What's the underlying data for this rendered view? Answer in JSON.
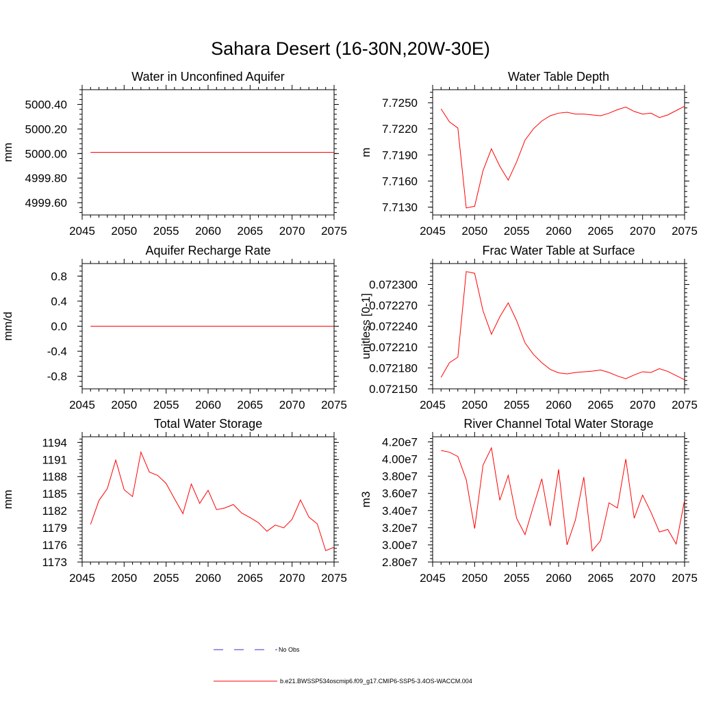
{
  "title": "Sahara Desert (16-30N,20W-30E)",
  "legend": {
    "entries": [
      {
        "label": "No Obs",
        "color": "#3333cc",
        "style": "dashed"
      },
      {
        "label": "b.e21.BWSSP534oscmip6.f09_g17.CMIP6-SSP5-3.4OS-WACCM.004",
        "color": "#ff0000",
        "style": "solid"
      }
    ]
  },
  "chart_data": [
    {
      "type": "line",
      "title": "Water in Unconfined Aquifer",
      "ylabel": "mm",
      "xlim": [
        2045,
        2075
      ],
      "ylim": [
        4999.5,
        5000.52
      ],
      "xticks": [
        2045,
        2050,
        2055,
        2060,
        2065,
        2070,
        2075
      ],
      "xtick_labels": [
        "2045",
        "2050",
        "2055",
        "2060",
        "2065",
        "2070",
        "2075"
      ],
      "yticks": [
        4999.6,
        4999.8,
        5000.0,
        5000.2,
        5000.4
      ],
      "ytick_labels": [
        "4999.60",
        "4999.80",
        "5000.00",
        "5000.20",
        "5000.40"
      ],
      "series": [
        {
          "color": "#ff0000",
          "x": [
            2046,
            2047,
            2048,
            2049,
            2050,
            2051,
            2052,
            2053,
            2054,
            2055,
            2056,
            2057,
            2058,
            2059,
            2060,
            2061,
            2062,
            2063,
            2064,
            2065,
            2066,
            2067,
            2068,
            2069,
            2070,
            2071,
            2072,
            2073,
            2074,
            2075
          ],
          "values": [
            5000.01,
            5000.01,
            5000.01,
            5000.01,
            5000.01,
            5000.01,
            5000.01,
            5000.01,
            5000.01,
            5000.01,
            5000.01,
            5000.01,
            5000.01,
            5000.01,
            5000.01,
            5000.01,
            5000.01,
            5000.01,
            5000.01,
            5000.01,
            5000.01,
            5000.01,
            5000.01,
            5000.01,
            5000.01,
            5000.01,
            5000.01,
            5000.01,
            5000.01,
            5000.01
          ]
        }
      ]
    },
    {
      "type": "line",
      "title": "Water Table Depth",
      "ylabel": "m",
      "xlim": [
        2045,
        2075
      ],
      "ylim": [
        7.7121,
        7.7265
      ],
      "xticks": [
        2045,
        2050,
        2055,
        2060,
        2065,
        2070,
        2075
      ],
      "xtick_labels": [
        "2045",
        "2050",
        "2055",
        "2060",
        "2065",
        "2070",
        "2075"
      ],
      "yticks": [
        7.713,
        7.716,
        7.719,
        7.722,
        7.725
      ],
      "ytick_labels": [
        "7.7130",
        "7.7160",
        "7.7190",
        "7.7220",
        "7.7250"
      ],
      "series": [
        {
          "color": "#ff0000",
          "x": [
            2046,
            2047,
            2048,
            2049,
            2050,
            2051,
            2052,
            2053,
            2054,
            2055,
            2056,
            2057,
            2058,
            2059,
            2060,
            2061,
            2062,
            2063,
            2064,
            2065,
            2066,
            2067,
            2068,
            2069,
            2070,
            2071,
            2072,
            2073,
            2074,
            2075
          ],
          "values": [
            7.7243,
            7.7228,
            7.7221,
            7.7129,
            7.7131,
            7.7172,
            7.7197,
            7.7177,
            7.7161,
            7.7182,
            7.7207,
            7.722,
            7.7229,
            7.7235,
            7.7238,
            7.7239,
            7.7237,
            7.7237,
            7.7236,
            7.7235,
            7.7238,
            7.7242,
            7.7245,
            7.724,
            7.7237,
            7.7238,
            7.7233,
            7.7236,
            7.7241,
            7.7246
          ]
        }
      ]
    },
    {
      "type": "line",
      "title": "Aquifer Recharge Rate",
      "ylabel": "mm/d",
      "xlim": [
        2045,
        2075
      ],
      "ylim": [
        -1.0,
        1.0
      ],
      "xticks": [
        2045,
        2050,
        2055,
        2060,
        2065,
        2070,
        2075
      ],
      "xtick_labels": [
        "2045",
        "2050",
        "2055",
        "2060",
        "2065",
        "2070",
        "2075"
      ],
      "yticks": [
        -0.8,
        -0.4,
        0.0,
        0.4,
        0.8
      ],
      "ytick_labels": [
        "-0.8",
        "-0.4",
        "0.0",
        "0.4",
        "0.8"
      ],
      "series": [
        {
          "color": "#ff0000",
          "x": [
            2046,
            2047,
            2048,
            2049,
            2050,
            2051,
            2052,
            2053,
            2054,
            2055,
            2056,
            2057,
            2058,
            2059,
            2060,
            2061,
            2062,
            2063,
            2064,
            2065,
            2066,
            2067,
            2068,
            2069,
            2070,
            2071,
            2072,
            2073,
            2074,
            2075
          ],
          "values": [
            0,
            0,
            0,
            0,
            0,
            0,
            0,
            0,
            0,
            0,
            0,
            0,
            0,
            0,
            0,
            0,
            0,
            0,
            0,
            0,
            0,
            0,
            0,
            0,
            0,
            0,
            0,
            0,
            0,
            0
          ]
        }
      ]
    },
    {
      "type": "line",
      "title": "Frac Water Table at Surface",
      "ylabel": "unitless [0-1]",
      "xlim": [
        2045,
        2075
      ],
      "ylim": [
        0.07215,
        0.07233
      ],
      "xticks": [
        2045,
        2050,
        2055,
        2060,
        2065,
        2070,
        2075
      ],
      "xtick_labels": [
        "2045",
        "2050",
        "2055",
        "2060",
        "2065",
        "2070",
        "2075"
      ],
      "yticks": [
        0.07215,
        0.07218,
        0.07221,
        0.07224,
        0.07227,
        0.0723
      ],
      "ytick_labels": [
        "0.072150",
        "0.072180",
        "0.072210",
        "0.072240",
        "0.072270",
        "0.072300"
      ],
      "series": [
        {
          "color": "#ff0000",
          "x": [
            2046,
            2047,
            2048,
            2049,
            2050,
            2051,
            2052,
            2053,
            2054,
            2055,
            2056,
            2057,
            2058,
            2059,
            2060,
            2061,
            2062,
            2063,
            2064,
            2065,
            2066,
            2067,
            2068,
            2069,
            2070,
            2071,
            2072,
            2073,
            2074,
            2075
          ],
          "values": [
            0.0721665,
            0.0721875,
            0.0721955,
            0.0723185,
            0.072316,
            0.072262,
            0.0722285,
            0.0722535,
            0.0722735,
            0.072248,
            0.072216,
            0.0721995,
            0.0721875,
            0.072178,
            0.072173,
            0.0721715,
            0.0721735,
            0.0721745,
            0.0721755,
            0.072177,
            0.0721735,
            0.0721685,
            0.0721645,
            0.07217,
            0.0721745,
            0.0721735,
            0.072179,
            0.072175,
            0.072169,
            0.072163
          ]
        }
      ]
    },
    {
      "type": "line",
      "title": "Total Water Storage",
      "ylabel": "mm",
      "xlim": [
        2045,
        2075
      ],
      "ylim": [
        1173,
        1195
      ],
      "xticks": [
        2045,
        2050,
        2055,
        2060,
        2065,
        2070,
        2075
      ],
      "xtick_labels": [
        "2045",
        "2050",
        "2055",
        "2060",
        "2065",
        "2070",
        "2075"
      ],
      "yticks": [
        1173,
        1176,
        1179,
        1182,
        1185,
        1188,
        1191,
        1194
      ],
      "ytick_labels": [
        "1173",
        "1176",
        "1179",
        "1182",
        "1185",
        "1188",
        "1191",
        "1194"
      ],
      "series": [
        {
          "color": "#ff0000",
          "x": [
            2046,
            2047,
            2048,
            2049,
            2050,
            2051,
            2052,
            2053,
            2054,
            2055,
            2056,
            2057,
            2058,
            2059,
            2060,
            2061,
            2062,
            2063,
            2064,
            2065,
            2066,
            2067,
            2068,
            2069,
            2070,
            2071,
            2072,
            2073,
            2074,
            2075
          ],
          "values": [
            1179.6,
            1183.8,
            1185.9,
            1190.9,
            1185.7,
            1184.5,
            1192.3,
            1188.8,
            1188.2,
            1186.8,
            1184.1,
            1181.5,
            1186.7,
            1183.3,
            1185.6,
            1182.2,
            1182.5,
            1183.1,
            1181.6,
            1180.8,
            1179.9,
            1178.4,
            1179.5,
            1179.0,
            1180.5,
            1183.9,
            1180.9,
            1179.7,
            1175.0,
            1175.6
          ]
        }
      ]
    },
    {
      "type": "line",
      "title": "River Channel Total Water Storage",
      "ylabel": "m3",
      "xlim": [
        2045,
        2075
      ],
      "ylim": [
        28000000,
        42600000
      ],
      "xticks": [
        2045,
        2050,
        2055,
        2060,
        2065,
        2070,
        2075
      ],
      "xtick_labels": [
        "2045",
        "2050",
        "2055",
        "2060",
        "2065",
        "2070",
        "2075"
      ],
      "yticks": [
        28000000,
        30000000,
        32000000,
        34000000,
        36000000,
        38000000,
        40000000,
        42000000
      ],
      "ytick_labels": [
        "2.80e7",
        "3.00e7",
        "3.20e7",
        "3.40e7",
        "3.60e7",
        "3.80e7",
        "4.00e7",
        "4.20e7"
      ],
      "series": [
        {
          "color": "#ff0000",
          "x": [
            2046,
            2047,
            2048,
            2049,
            2050,
            2051,
            2052,
            2053,
            2054,
            2055,
            2056,
            2057,
            2058,
            2059,
            2060,
            2061,
            2062,
            2063,
            2064,
            2065,
            2066,
            2067,
            2068,
            2069,
            2070,
            2071,
            2072,
            2073,
            2074,
            2075
          ],
          "values": [
            41000000,
            40800000,
            40300000,
            37600000,
            31900000,
            39300000,
            41300000,
            35200000,
            38100000,
            33100000,
            31200000,
            34500000,
            37700000,
            32200000,
            38800000,
            30000000,
            32900000,
            37900000,
            29300000,
            30500000,
            34900000,
            34300000,
            40000000,
            33100000,
            35800000,
            33800000,
            31500000,
            31800000,
            30100000,
            35200000
          ]
        }
      ]
    }
  ]
}
